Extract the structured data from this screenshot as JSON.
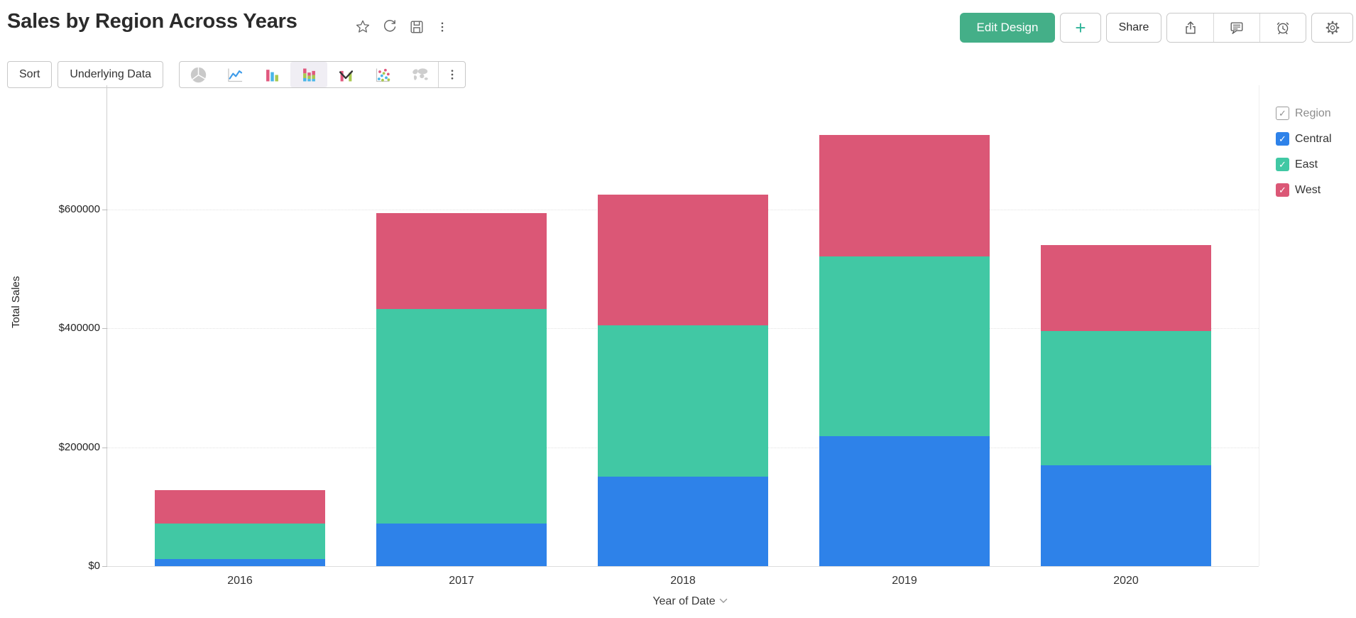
{
  "header": {
    "title": "Sales by Region Across Years",
    "title_icons": [
      "star-icon",
      "refresh-icon",
      "save-icon",
      "more-vertical-icon"
    ],
    "actions": {
      "edit_design": "Edit Design",
      "plus": "+",
      "share": "Share",
      "icon_buttons": [
        "export-icon",
        "comment-icon",
        "alarm-icon",
        "settings-icon"
      ]
    }
  },
  "toolbar": {
    "sort": "Sort",
    "underlying_data": "Underlying Data",
    "chart_types": [
      {
        "name": "pie-chart",
        "selected": false
      },
      {
        "name": "line-chart",
        "selected": false
      },
      {
        "name": "bar-chart",
        "selected": false
      },
      {
        "name": "stacked-bar-chart",
        "selected": true
      },
      {
        "name": "bar-line-combo-chart",
        "selected": false
      },
      {
        "name": "scatter-chart",
        "selected": false
      },
      {
        "name": "map-chart",
        "selected": false
      },
      {
        "name": "more-chart-types",
        "selected": false
      }
    ]
  },
  "chart_data": {
    "type": "bar",
    "stacked": true,
    "title": "Sales by Region Across Years",
    "categories": [
      "2016",
      "2017",
      "2018",
      "2019",
      "2020"
    ],
    "series": [
      {
        "name": "Central",
        "color": "#2E82E9",
        "values": [
          12000,
          72000,
          150000,
          218000,
          170000
        ]
      },
      {
        "name": "East",
        "color": "#41C8A4",
        "values": [
          60000,
          360000,
          255000,
          303000,
          225000
        ]
      },
      {
        "name": "West",
        "color": "#DB5776",
        "values": [
          56000,
          162000,
          220000,
          204000,
          145000
        ]
      }
    ],
    "totals": [
      128000,
      594000,
      625000,
      725000,
      540000
    ],
    "xlabel": "Year of Date",
    "ylabel": "Total Sales",
    "y_ticks": [
      {
        "label": "$0",
        "value": 0
      },
      {
        "label": "$200000",
        "value": 200000
      },
      {
        "label": "$400000",
        "value": 400000
      },
      {
        "label": "$600000",
        "value": 600000
      }
    ],
    "ylim": [
      0,
      808000
    ],
    "grid": true,
    "legend_position": "right",
    "legend_title": "Region",
    "legend_checked": [
      true,
      true,
      true
    ]
  }
}
